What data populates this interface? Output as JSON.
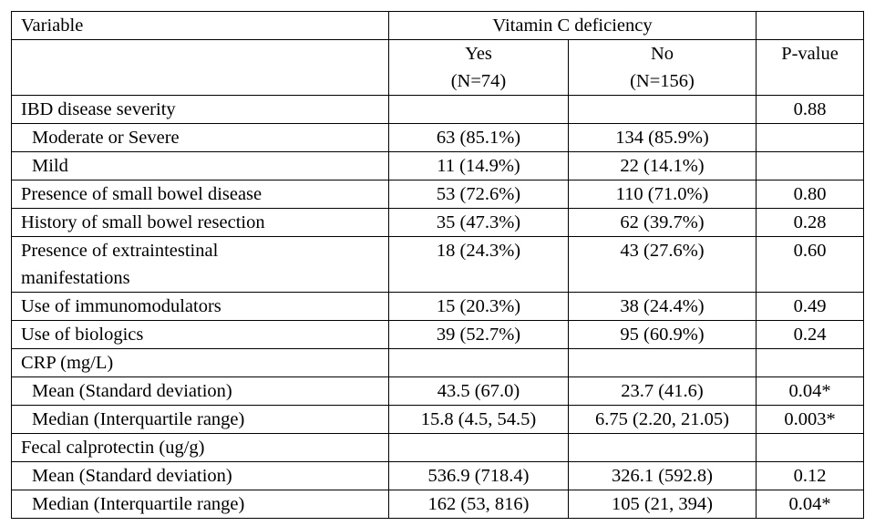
{
  "header": {
    "variable": "Variable",
    "group": "Vitamin C deficiency",
    "yes_label": "Yes",
    "yes_n": "(N=74)",
    "no_label": "No",
    "no_n": "(N=156)",
    "p_label": "P-value"
  },
  "rows": [
    {
      "label": "IBD disease severity",
      "yes": "",
      "no": "",
      "p": "0.88"
    },
    {
      "label": "Moderate or Severe",
      "yes": "63 (85.1%)",
      "no": "134 (85.9%)",
      "p": ""
    },
    {
      "label": "Mild",
      "yes": "11 (14.9%)",
      "no": "22 (14.1%)",
      "p": ""
    },
    {
      "label": "Presence of small bowel disease",
      "yes": "53 (72.6%)",
      "no": "110 (71.0%)",
      "p": "0.80"
    },
    {
      "label": "History of small bowel resection",
      "yes": "35 (47.3%)",
      "no": "62 (39.7%)",
      "p": "0.28"
    },
    {
      "label_line1": "Presence of extraintestinal",
      "label_line2": "manifestations",
      "yes": "18 (24.3%)",
      "no": "43 (27.6%)",
      "p": "0.60"
    },
    {
      "label": "Use of immunomodulators",
      "yes": "15 (20.3%)",
      "no": "38 (24.4%)",
      "p": "0.49"
    },
    {
      "label": "Use of biologics",
      "yes": "39 (52.7%)",
      "no": "95 (60.9%)",
      "p": "0.24"
    },
    {
      "label": "CRP (mg/L)",
      "yes": "",
      "no": "",
      "p": ""
    },
    {
      "label": "Mean (Standard deviation)",
      "yes": "43.5 (67.0)",
      "no": "23.7 (41.6)",
      "p": "0.04*"
    },
    {
      "label": "Median (Interquartile range)",
      "yes": "15.8 (4.5, 54.5)",
      "no": "6.75 (2.20, 21.05)",
      "p": "0.003*"
    },
    {
      "label": "Fecal calprotectin (ug/g)",
      "yes": "",
      "no": "",
      "p": ""
    },
    {
      "label": "Mean (Standard deviation)",
      "yes": "536.9 (718.4)",
      "no": "326.1 (592.8)",
      "p": "0.12"
    },
    {
      "label": "Median (Interquartile range)",
      "yes": "162 (53, 816)",
      "no": "105 (21, 394)",
      "p": "0.04*"
    }
  ]
}
